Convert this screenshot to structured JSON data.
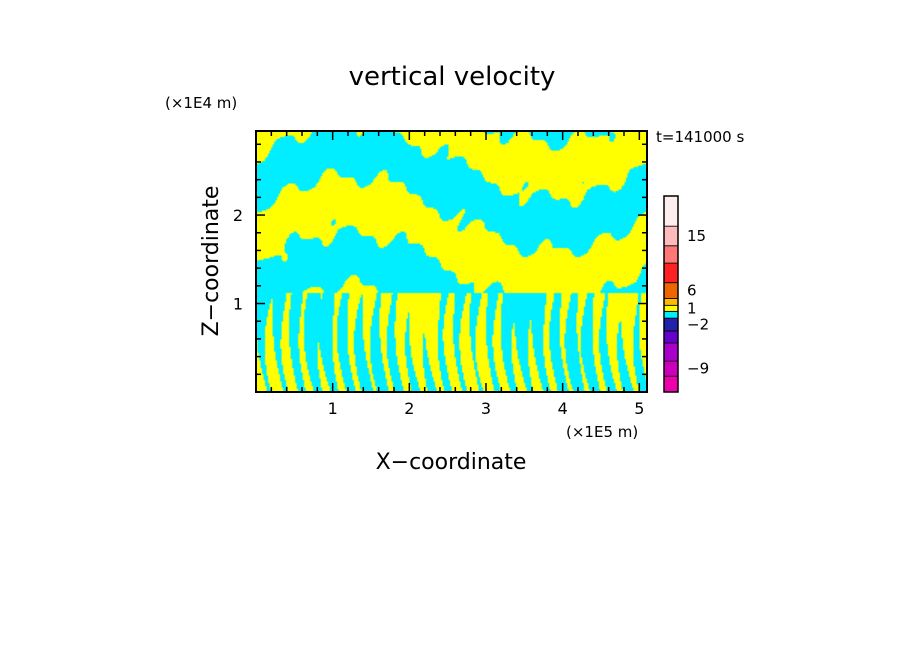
{
  "chart_data": {
    "type": "heatmap",
    "title": "vertical velocity",
    "xlabel": "X−coordinate",
    "ylabel": "Z−coordinate",
    "x_unit": "(×1E5 m)",
    "y_unit": "(×1E4 m)",
    "time_label": "t=141000 s",
    "xlim": [
      0,
      5.1
    ],
    "ylim": [
      0,
      2.95
    ],
    "x_ticks": [
      "1",
      "2",
      "3",
      "4",
      "5"
    ],
    "y_ticks": [
      "1",
      "2"
    ],
    "field_colors": {
      "positive": "#ffff00",
      "negative": "#00eeff"
    },
    "colorbar": {
      "labels": [
        {
          "text": "15",
          "value": 15
        },
        {
          "text": "6",
          "value": 6
        },
        {
          "text": "1",
          "value": 1
        },
        {
          "text": "−2",
          "value": -2
        },
        {
          "text": "−9",
          "value": -9
        }
      ],
      "colors": [
        "#ee00aa",
        "#cc00bb",
        "#aa00cc",
        "#6600cc",
        "#2222aa",
        "#00eeff",
        "#ffff00",
        "#ffbb00",
        "#ee6600",
        "#ff2222",
        "#ff7777",
        "#ffbbbb",
        "#ffeeee"
      ]
    }
  }
}
